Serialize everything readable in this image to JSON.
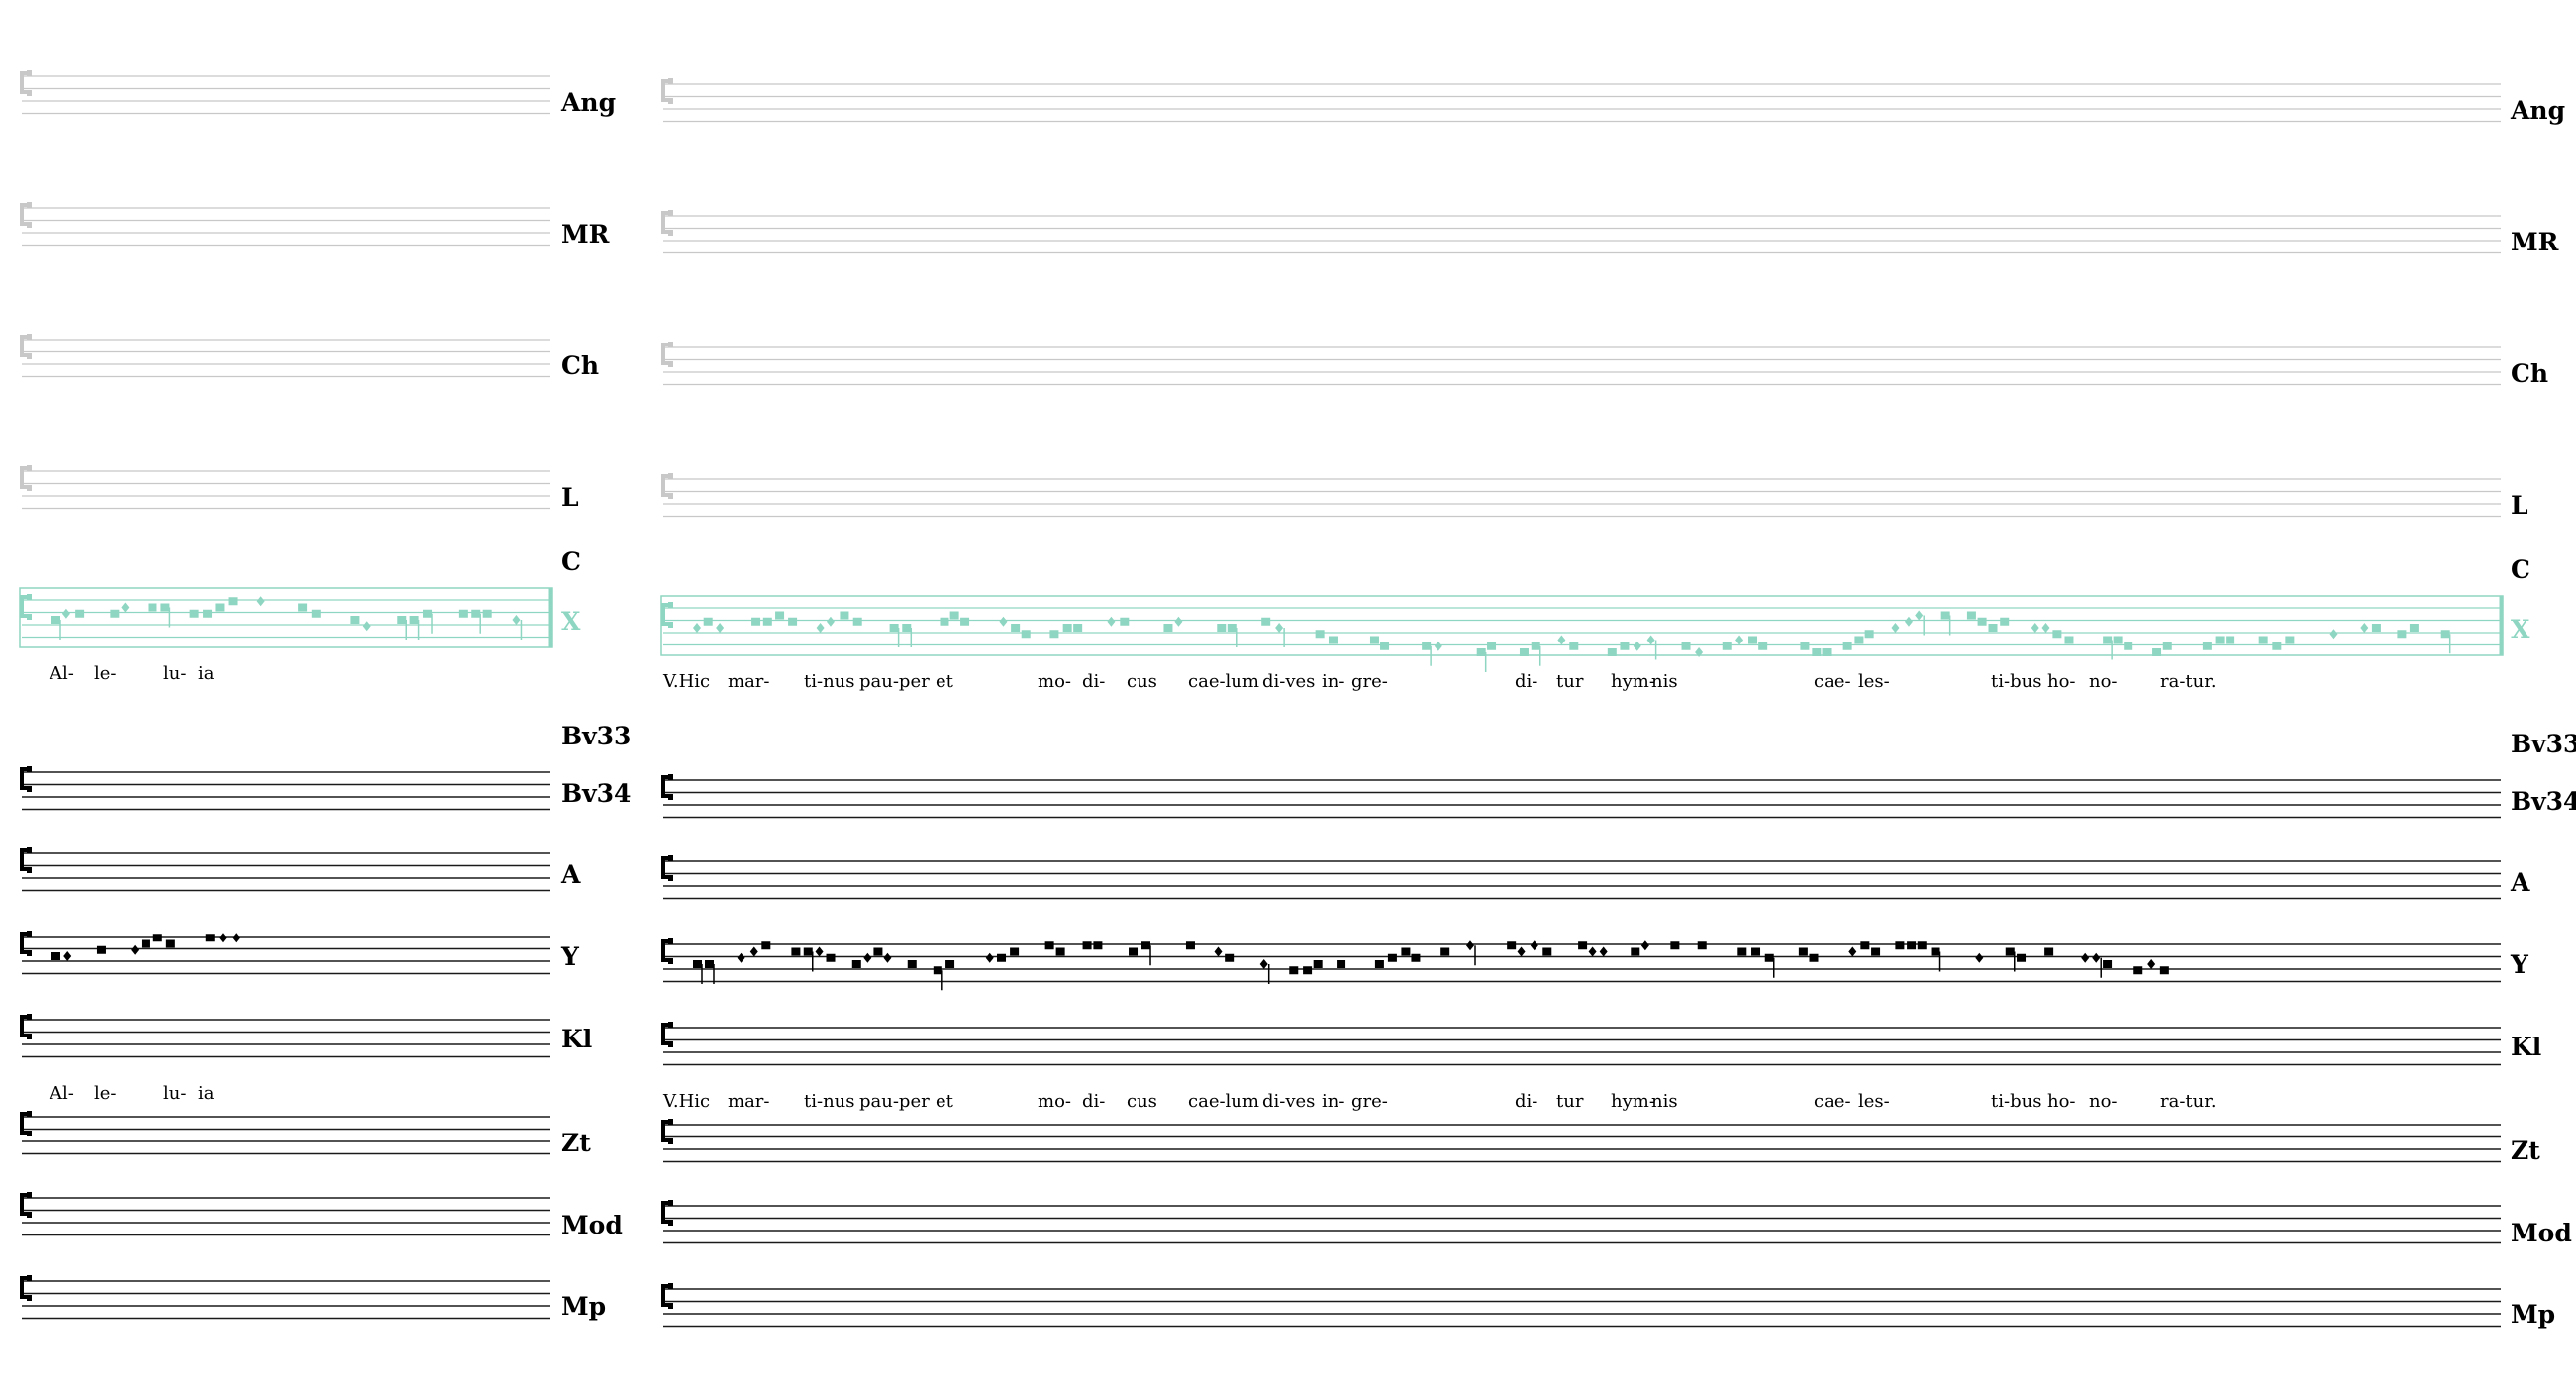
{
  "colors": {
    "staff_gray": "#c8c8c8",
    "staff_black": "#1a1a1a",
    "reference": "#8fd6c2",
    "highlight": "#e02020",
    "ink": "#000000"
  },
  "panels": [
    {
      "id": "alleluia",
      "label_top": [
        "Ang",
        "MR",
        "Ch",
        "L",
        "C",
        "X"
      ],
      "label_bottom": [
        "Bv33",
        "Bv34",
        "A",
        "Y",
        "Kl",
        "Zt",
        "Mod",
        "Mp"
      ],
      "syllables": [
        "Al-",
        "le-",
        "lu-",
        "ia"
      ]
    },
    {
      "id": "verse",
      "label_top": [
        "Ang",
        "MR",
        "Ch",
        "L",
        "C",
        "X"
      ],
      "label_bottom": [
        "Bv33",
        "Bv34",
        "A",
        "Y",
        "Kl",
        "Zt",
        "Mod",
        "Mp"
      ],
      "syllables": [
        "V.Hic",
        "mar-",
        "ti-nus",
        "pau-per",
        "et",
        "mo-",
        "di-",
        "cus",
        "cae-lum",
        "di-ves",
        "in-",
        "gre-",
        "di-",
        "tur",
        "hym-",
        "nis",
        "cae-",
        "les-",
        "ti-bus",
        "ho-",
        "no-",
        "ra-tur."
      ]
    }
  ]
}
